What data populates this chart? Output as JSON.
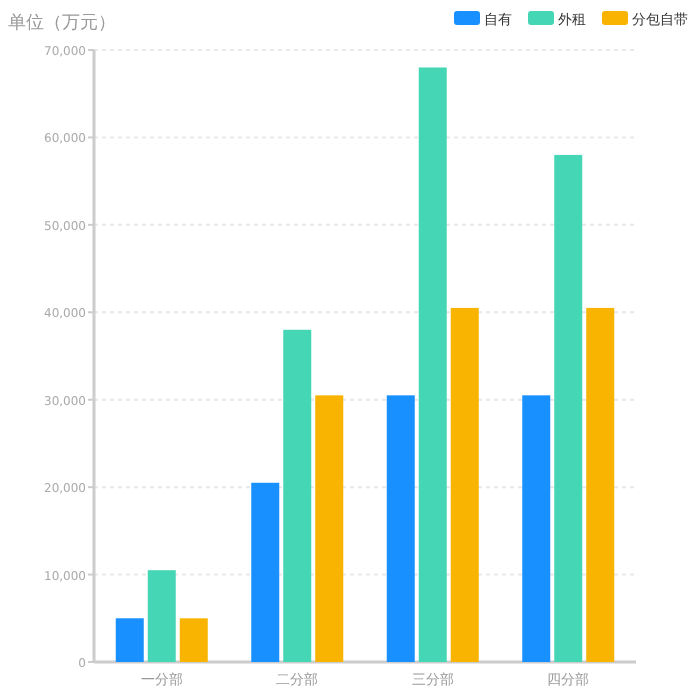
{
  "chart_data": {
    "type": "bar",
    "ylabel": "单位（万元）",
    "categories": [
      "一分部",
      "二分部",
      "三分部",
      "四分部"
    ],
    "series": [
      {
        "name": "自有",
        "color": "#1890ff",
        "values": [
          5000,
          20500,
          30500,
          30500
        ]
      },
      {
        "name": "外租",
        "color": "#45d6b5",
        "values": [
          10500,
          38000,
          68000,
          58000
        ]
      },
      {
        "name": "分包自带",
        "color": "#f8b400",
        "values": [
          5000,
          30500,
          40500,
          40500
        ]
      }
    ],
    "ylim": [
      0,
      70000
    ],
    "yticks": [
      {
        "value": 0,
        "label": "0"
      },
      {
        "value": 10000,
        "label": "10,000"
      },
      {
        "value": 20000,
        "label": "20,000"
      },
      {
        "value": 30000,
        "label": "30,000"
      },
      {
        "value": 40000,
        "label": "40,000"
      },
      {
        "value": 50000,
        "label": "50,000"
      },
      {
        "value": 60000,
        "label": "60,000"
      },
      {
        "value": 70000,
        "label": "70,000"
      }
    ],
    "grid": "y",
    "legend": "top right"
  }
}
